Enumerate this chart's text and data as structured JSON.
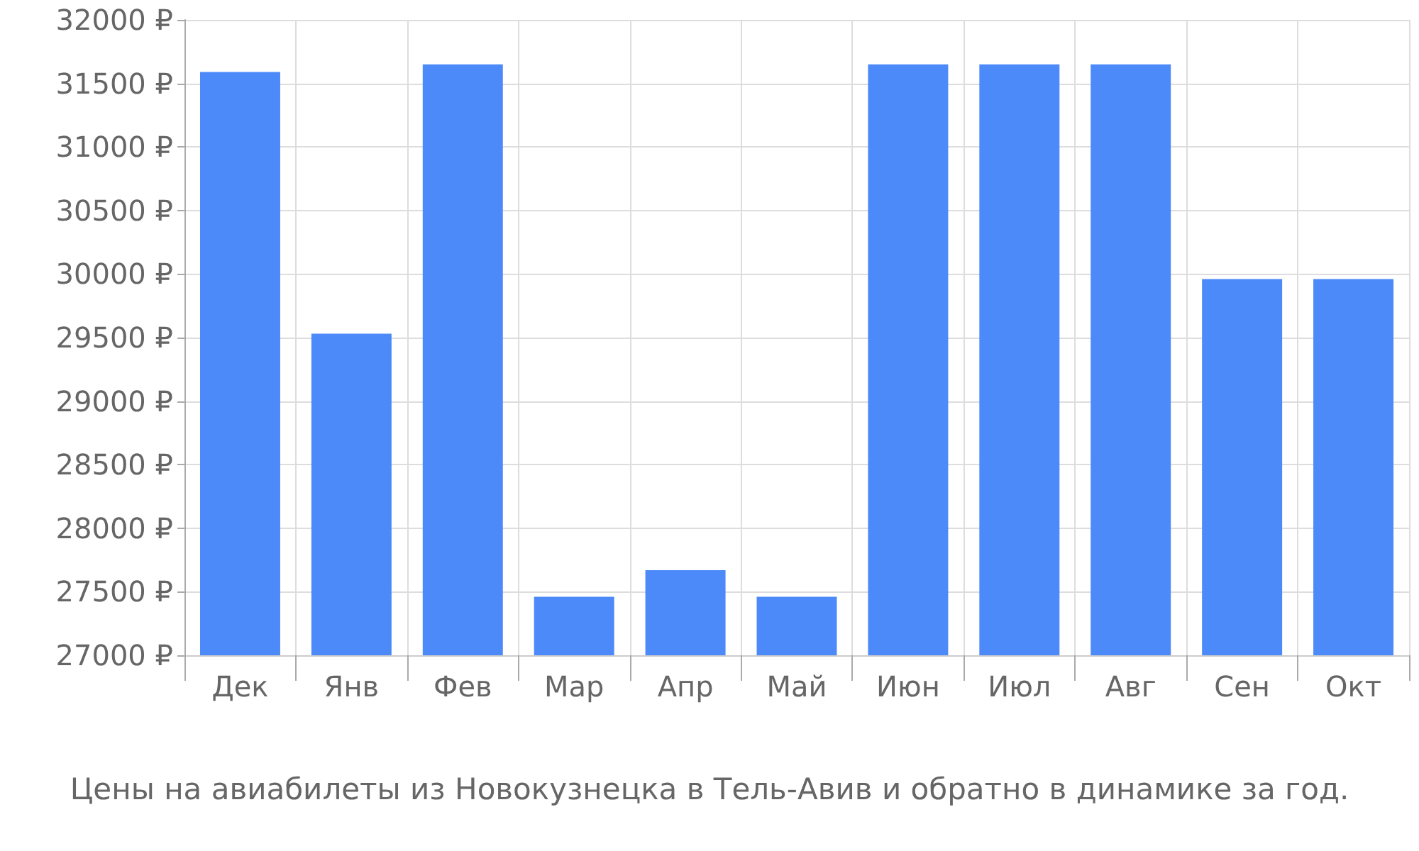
{
  "chart_data": {
    "type": "bar",
    "categories": [
      "Дек",
      "Янв",
      "Фев",
      "Мар",
      "Апр",
      "Май",
      "Июн",
      "Июл",
      "Авг",
      "Сен",
      "Окт"
    ],
    "values": [
      31590,
      29530,
      31650,
      27460,
      27670,
      27460,
      31650,
      31650,
      31650,
      29960,
      29960
    ],
    "color": "#4d8af9",
    "ylim": [
      27000,
      32000
    ],
    "yticks": [
      {
        "value": 27000,
        "label": "27000 ₽"
      },
      {
        "value": 27500,
        "label": "27500 ₽"
      },
      {
        "value": 28000,
        "label": "28000 ₽"
      },
      {
        "value": 28500,
        "label": "28500 ₽"
      },
      {
        "value": 29000,
        "label": "29000 ₽"
      },
      {
        "value": 29500,
        "label": "29500 ₽"
      },
      {
        "value": 30000,
        "label": "30000 ₽"
      },
      {
        "value": 30500,
        "label": "30500 ₽"
      },
      {
        "value": 31000,
        "label": "31000 ₽"
      },
      {
        "value": 31500,
        "label": "31500 ₽"
      },
      {
        "value": 32000,
        "label": "32000 ₽"
      }
    ],
    "grid": true,
    "annotations": [
      "Цены на авиабилеты из Новокузнецка в Тель-Авив и обратно в динамике за год."
    ]
  }
}
